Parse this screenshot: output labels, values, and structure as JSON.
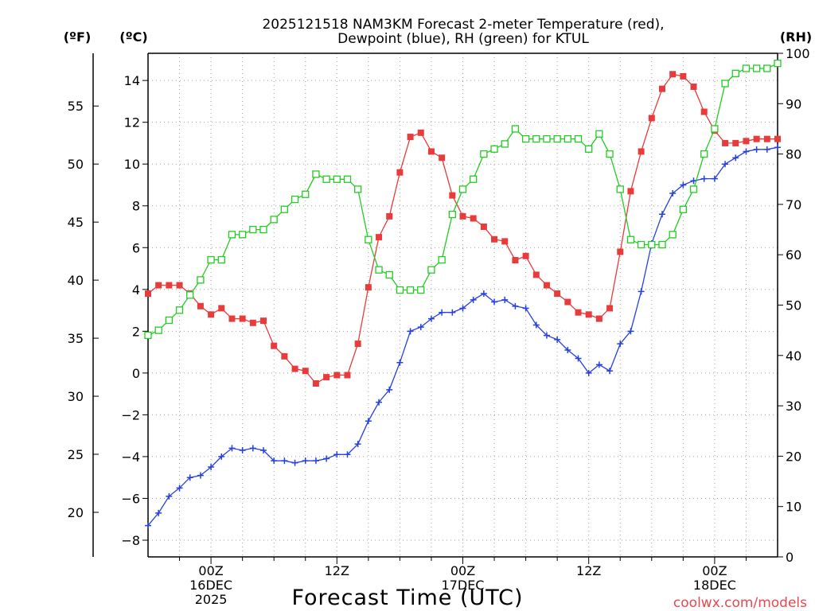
{
  "chart_data": {
    "type": "line",
    "title": [
      "2025121518 NAM3KM Forecast 2-meter Temperature (red),",
      "Dewpoint (blue), RH (green) for KTUL"
    ],
    "xlabel": "Forecast Time (UTC)",
    "watermark": "coolwx.com/models",
    "units": {
      "fahrenheit": "(ºF)",
      "celsius": "(ºC)",
      "rh": "(RH)"
    },
    "x_unit": "forecast hour from 2025-12-15 18Z",
    "xlim": [
      0,
      60
    ],
    "x_ticks": [
      {
        "hour": 6,
        "lines": [
          "00Z",
          "16DEC",
          "2025"
        ]
      },
      {
        "hour": 18,
        "lines": [
          "12Z"
        ]
      },
      {
        "hour": 30,
        "lines": [
          "00Z",
          "17DEC"
        ]
      },
      {
        "hour": 42,
        "lines": [
          "12Z"
        ]
      },
      {
        "hour": 54,
        "lines": [
          "00Z",
          "18DEC"
        ]
      }
    ],
    "ylim_c": [
      -8.8,
      15.3
    ],
    "yticks_c": [
      -8,
      -6,
      -4,
      -2,
      0,
      2,
      4,
      6,
      8,
      10,
      12,
      14
    ],
    "yticks_f": [
      20,
      25,
      30,
      35,
      40,
      45,
      50,
      55
    ],
    "ylim_rh": [
      0,
      100
    ],
    "yticks_rh": [
      0,
      10,
      20,
      30,
      40,
      50,
      60,
      70,
      80,
      90,
      100
    ],
    "grid": true,
    "x": [
      0,
      1,
      2,
      3,
      4,
      5,
      6,
      7,
      8,
      9,
      10,
      11,
      12,
      13,
      14,
      15,
      16,
      17,
      18,
      19,
      20,
      21,
      22,
      23,
      24,
      25,
      26,
      27,
      28,
      29,
      30,
      31,
      32,
      33,
      34,
      35,
      36,
      37,
      38,
      39,
      40,
      41,
      42,
      43,
      44,
      45,
      46,
      47,
      48,
      49,
      50,
      51,
      52,
      53,
      54,
      55,
      56,
      57,
      58,
      59,
      60
    ],
    "series": [
      {
        "name": "2-meter Temperature (°C)",
        "axis": "celsius",
        "color": "#e83b3b",
        "marker": "filled-square",
        "values": [
          3.8,
          4.2,
          4.2,
          4.2,
          3.8,
          3.2,
          2.8,
          3.1,
          2.6,
          2.6,
          2.4,
          2.5,
          1.3,
          0.8,
          0.2,
          0.1,
          -0.5,
          -0.2,
          -0.1,
          -0.1,
          1.4,
          4.1,
          6.5,
          7.5,
          9.6,
          11.3,
          11.5,
          10.6,
          10.3,
          8.5,
          7.5,
          7.4,
          7.0,
          6.4,
          6.3,
          5.4,
          5.6,
          4.7,
          4.2,
          3.8,
          3.4,
          2.9,
          2.8,
          2.6,
          3.1,
          5.8,
          8.7,
          10.6,
          12.2,
          13.6,
          14.3,
          14.2,
          13.7,
          12.5,
          11.6,
          11.0,
          11.0,
          11.1,
          11.2,
          11.2,
          11.2
        ]
      },
      {
        "name": "Dewpoint (°C)",
        "axis": "celsius",
        "color": "#2640e0",
        "marker": "plus",
        "values": [
          -7.3,
          -6.7,
          -5.9,
          -5.5,
          -5.0,
          -4.9,
          -4.5,
          -4.0,
          -3.6,
          -3.7,
          -3.6,
          -3.7,
          -4.2,
          -4.2,
          -4.3,
          -4.2,
          -4.2,
          -4.1,
          -3.9,
          -3.9,
          -3.4,
          -2.3,
          -1.4,
          -0.8,
          0.5,
          2.0,
          2.2,
          2.6,
          2.9,
          2.9,
          3.1,
          3.5,
          3.8,
          3.4,
          3.5,
          3.2,
          3.1,
          2.3,
          1.8,
          1.6,
          1.1,
          0.7,
          0.0,
          0.4,
          0.1,
          1.4,
          2.0,
          3.9,
          6.2,
          7.6,
          8.6,
          9.0,
          9.2,
          9.3,
          9.3,
          10.0,
          10.3,
          10.6,
          10.7,
          10.7,
          10.8
        ]
      },
      {
        "name": "RH (%)",
        "axis": "rh",
        "color": "#22cc22",
        "marker": "open-square",
        "values": [
          44,
          45,
          47,
          49,
          52,
          55,
          59,
          59,
          64,
          64,
          65,
          65,
          67,
          69,
          71,
          72,
          76,
          75,
          75,
          75,
          73,
          63,
          57,
          56,
          53,
          53,
          53,
          57,
          59,
          68,
          73,
          75,
          80,
          81,
          82,
          85,
          83,
          83,
          83,
          83,
          83,
          83,
          81,
          84,
          80,
          73,
          63,
          62,
          62,
          62,
          64,
          69,
          73,
          80,
          85,
          94,
          96,
          97,
          97,
          97,
          98
        ]
      }
    ]
  }
}
